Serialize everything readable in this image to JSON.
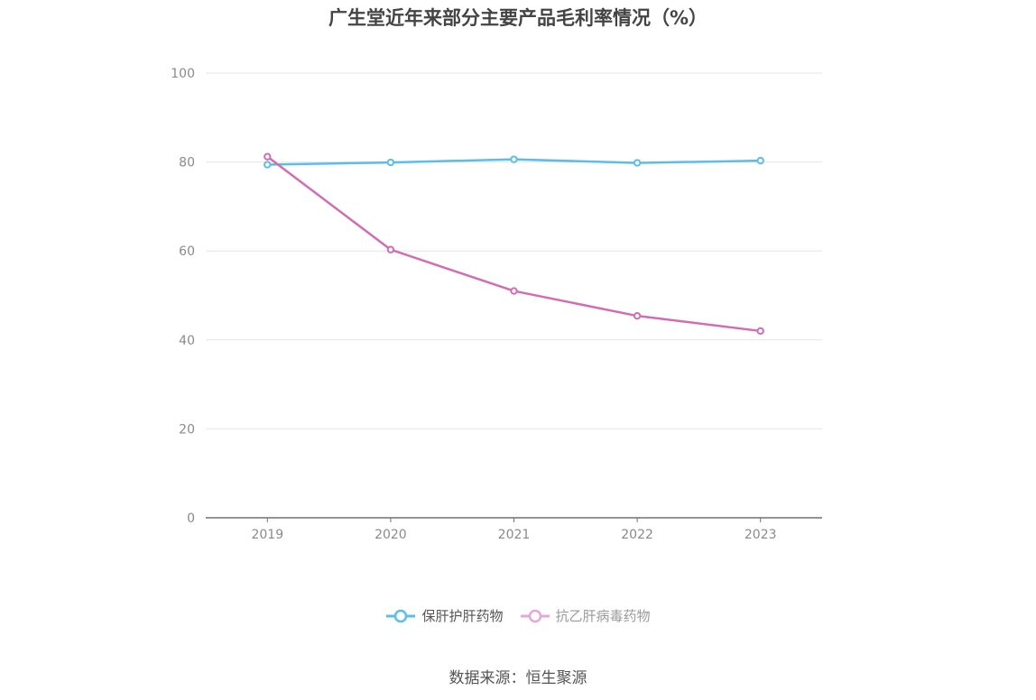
{
  "chart_data": {
    "type": "line",
    "title": "广生堂近年来部分主要产品毛利率情况（%）",
    "categories": [
      "2019",
      "2020",
      "2021",
      "2022",
      "2023"
    ],
    "series": [
      {
        "name": "保肝护肝药物",
        "color": "#5bbcf0",
        "values": [
          79.4,
          79.9,
          80.6,
          79.8,
          80.3
        ]
      },
      {
        "name": "抗乙肝病毒药物",
        "color": "#d46cb3",
        "values": [
          81.2,
          60.3,
          51.0,
          45.4,
          42.0
        ]
      }
    ],
    "ylim": [
      0,
      100
    ],
    "yticks": [
      0,
      20,
      40,
      60,
      80,
      100
    ],
    "grid": true,
    "legend_position": "bottom"
  },
  "legend": {
    "items": [
      {
        "label": "保肝护肝药物",
        "color": "#5bbcf0",
        "text_color": "#555555"
      },
      {
        "label": "抗乙肝病毒药物",
        "color": "#e8a6d5",
        "text_color": "#9a9a9a"
      }
    ]
  },
  "source": "数据来源：恒生聚源"
}
